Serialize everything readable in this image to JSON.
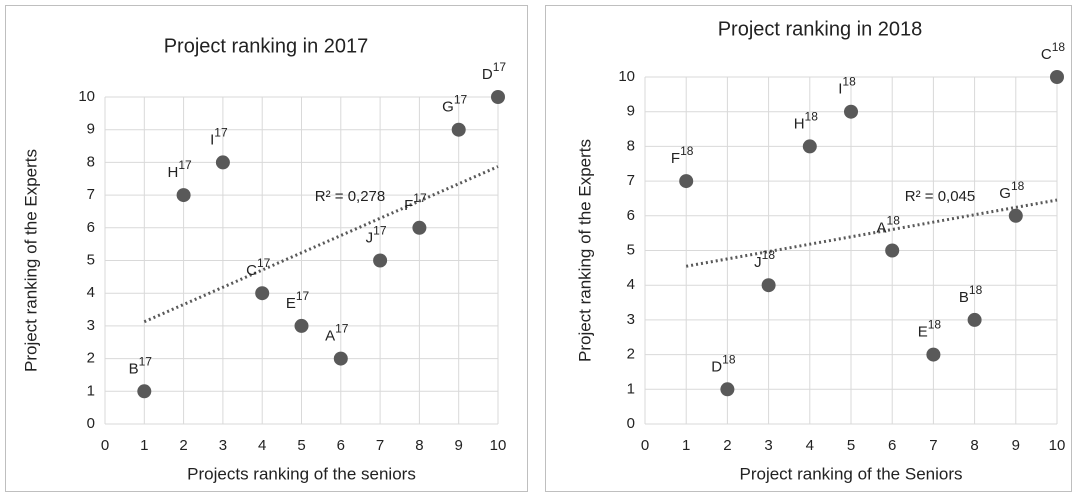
{
  "chart_data": [
    {
      "type": "scatter",
      "title": "Project ranking in 2017",
      "x_label": "Projects ranking of the seniors",
      "y_label": "Project ranking of the Experts",
      "labels": [
        "B",
        "H",
        "I",
        "C",
        "E",
        "A",
        "J",
        "F",
        "G",
        "D"
      ],
      "label_suffix": "17",
      "x": [
        1,
        2,
        3,
        4,
        5,
        6,
        7,
        8,
        9,
        10
      ],
      "values": [
        1,
        7,
        8,
        4,
        3,
        2,
        5,
        6,
        9,
        10
      ],
      "color": "#595959",
      "trendline": true,
      "annotation": "R² = 0,278",
      "xlim": [
        0,
        10
      ],
      "xticks": [
        0,
        1,
        2,
        3,
        4,
        5,
        6,
        7,
        8,
        9,
        10
      ],
      "ylim": [
        0,
        10
      ],
      "yticks": [
        0,
        1,
        2,
        3,
        4,
        5,
        6,
        7,
        8,
        9,
        10
      ],
      "grid": true
    },
    {
      "type": "scatter",
      "title": "Project ranking in 2018",
      "x_label": "Project ranking of the Seniors",
      "y_label": "Project ranking of the Experts",
      "labels": [
        "F",
        "D",
        "J",
        "H",
        "I",
        "A",
        "E",
        "B",
        "G",
        "C"
      ],
      "label_suffix": "18",
      "x": [
        1,
        2,
        3,
        4,
        5,
        6,
        7,
        8,
        9,
        10
      ],
      "values": [
        7,
        1,
        4,
        8,
        9,
        5,
        2,
        3,
        6,
        10
      ],
      "color": "#595959",
      "trendline": true,
      "annotation": "R² = 0,045",
      "xlim": [
        0,
        10
      ],
      "xticks": [
        0,
        1,
        2,
        3,
        4,
        5,
        6,
        7,
        8,
        9,
        10
      ],
      "ylim": [
        0,
        10
      ],
      "yticks": [
        0,
        1,
        2,
        3,
        4,
        5,
        6,
        7,
        8,
        9,
        10
      ],
      "grid": true
    }
  ]
}
